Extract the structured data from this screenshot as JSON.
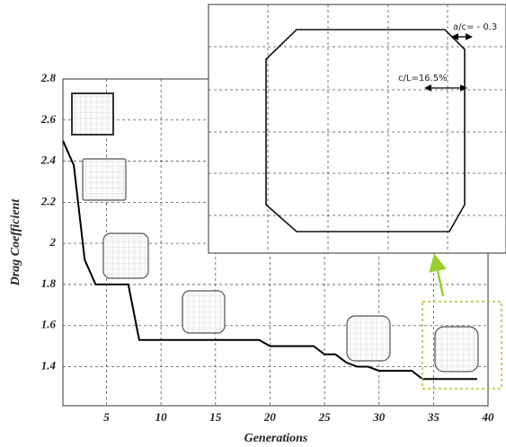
{
  "chart_data": {
    "type": "line",
    "xlabel": "Generations",
    "ylabel": "Drag Coefficient",
    "x": [
      1,
      2,
      3,
      4,
      5,
      6,
      7,
      8,
      9,
      10,
      11,
      12,
      13,
      14,
      15,
      16,
      17,
      18,
      19,
      20,
      21,
      22,
      23,
      24,
      25,
      26,
      27,
      28,
      29,
      30,
      31,
      32,
      33,
      34,
      35,
      36,
      37,
      38,
      39
    ],
    "series": [
      {
        "color": "#000000",
        "values": [
          2.5,
          2.38,
          1.92,
          1.8,
          1.8,
          1.8,
          1.8,
          1.53,
          1.53,
          1.53,
          1.53,
          1.53,
          1.53,
          1.53,
          1.53,
          1.53,
          1.53,
          1.53,
          1.53,
          1.5,
          1.5,
          1.5,
          1.5,
          1.5,
          1.46,
          1.46,
          1.42,
          1.4,
          1.4,
          1.38,
          1.38,
          1.38,
          1.38,
          1.34,
          1.34,
          1.34,
          1.34,
          1.34,
          1.34
        ]
      }
    ],
    "xlim": [
      1,
      40
    ],
    "xticks": [
      5,
      10,
      15,
      20,
      25,
      30,
      35,
      40
    ],
    "ylim": [
      1.21,
      2.8
    ],
    "yticks": [
      1.4,
      1.6,
      1.8,
      2,
      2.2,
      2.4,
      2.6,
      2.8
    ],
    "grid": true,
    "annotations": [
      "a/c= - 0.3",
      "c/L=16.5%"
    ]
  }
}
